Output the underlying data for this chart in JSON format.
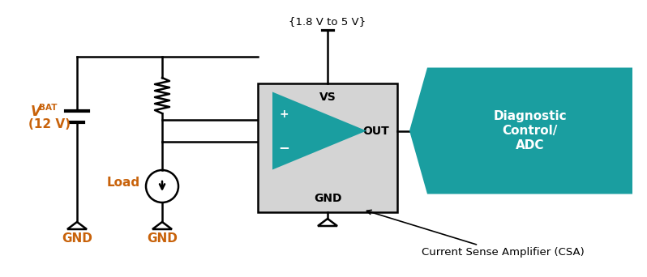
{
  "bg_color": "#ffffff",
  "line_color": "#000000",
  "teal_color": "#1a9ea0",
  "gray_box_color": "#d4d4d4",
  "orange_text": "#c8620a",
  "label_vbat_v": "V",
  "label_vbat_sub": "BAT",
  "label_12v": "(12 V)",
  "label_load": "Load",
  "label_gnd": "GND",
  "label_vs": "VS",
  "label_out": "OUT",
  "label_gnd_box": "GND",
  "label_voltage": "{1.8 V to 5 V}",
  "label_plus": "+",
  "label_minus": "−",
  "label_diag_lines": [
    "Diagnostic",
    "Control/",
    "ADC"
  ],
  "label_csa": "Current Sense Amplifier (CSA)",
  "fig_w": 7.98,
  "fig_h": 3.42,
  "dpi": 100
}
